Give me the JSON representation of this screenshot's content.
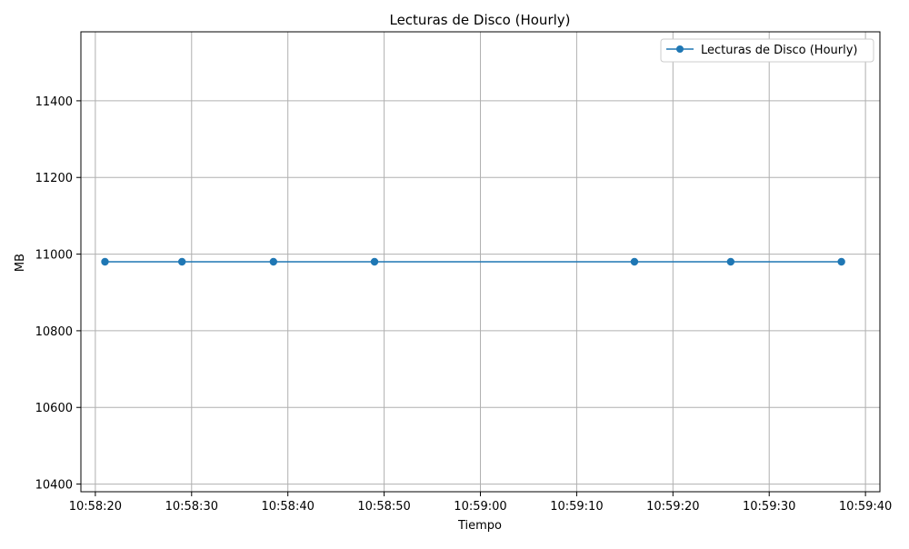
{
  "chart_data": {
    "type": "line",
    "title": "Lecturas de Disco (Hourly)",
    "xlabel": "Tiempo",
    "ylabel": "MB",
    "x_ticks": [
      "10:58:20",
      "10:58:30",
      "10:58:40",
      "10:58:50",
      "10:59:00",
      "10:59:10",
      "10:59:20",
      "10:59:30",
      "10:59:40"
    ],
    "y_ticks": [
      10400,
      10600,
      10800,
      11000,
      11200,
      11400
    ],
    "xlim": [
      "10:58:18.5",
      "10:59:41.5"
    ],
    "ylim": [
      10380,
      11580
    ],
    "grid": true,
    "legend_position": "top-right",
    "series": [
      {
        "name": "Lecturas de Disco (Hourly)",
        "color": "#1f77b4",
        "marker": "circle",
        "x": [
          "10:58:21",
          "10:58:29",
          "10:58:38.5",
          "10:58:49",
          "10:59:16",
          "10:59:26",
          "10:59:37.5"
        ],
        "y": [
          10980,
          10980,
          10980,
          10980,
          10980,
          10980,
          10980
        ]
      }
    ]
  }
}
